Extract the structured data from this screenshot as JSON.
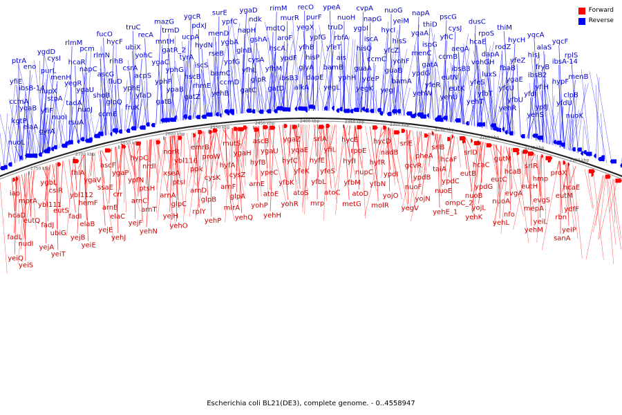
{
  "caption": "Escherichia coli BL21(DE3), complete genome. - 0..4558947",
  "legend": {
    "forward_label": "Forward",
    "reverse_label": "Reverse",
    "forward_color": "#ff0000",
    "reverse_color": "#0000ff"
  },
  "ruler_ticks": [
    "2750 kbp",
    "2700 kbp",
    "2650 kbp",
    "2600 kbp",
    "2550 kbp",
    "2450 kbp",
    "2400 kbp",
    "2350 kbp",
    "2300 kbp",
    "2250 kbp",
    "2200 kbp",
    "2150 kbp",
    "2100 kbp"
  ],
  "reverse_labels": [
    "ptrA",
    "ygdD",
    "rlmM",
    "fucO",
    "truC",
    "mazG",
    "ygcR",
    "surE",
    "ygaD",
    "rimM",
    "recO",
    "ypeA",
    "cvpA",
    "nuoG",
    "napA",
    "pscG",
    "dusC",
    "thiM",
    "yqcA",
    "yqcF",
    "eno",
    "cysI",
    "pcm",
    "hycF",
    "recA",
    "trmD",
    "pdxJ",
    "ypfC",
    "ndk",
    "murR",
    "purF",
    "nuoH",
    "napG",
    "yeiM",
    "thiD",
    "cysJ",
    "rpoS",
    "hycH",
    "alaS",
    "rplS",
    "yfiE",
    "purL",
    "hcaR",
    "rlmN",
    "ubiX",
    "mntH",
    "ucpA",
    "menD",
    "napH",
    "mdtQ",
    "yegX",
    "truD",
    "ygbI",
    "hycI",
    "yqaA",
    "yfiC",
    "hcaE",
    "rodZ",
    "hisJ",
    "ibsA-14",
    "ibsB-14",
    "menH",
    "napC",
    "rihB",
    "yohC",
    "gatR_2",
    "hydN",
    "ygbA",
    "gshA",
    "aroF",
    "ypfG",
    "rbfA",
    "iscA",
    "hisS",
    "ispG",
    "aegA",
    "dapA",
    "yfeZ",
    "fryB",
    "menB",
    "ccmA",
    "nupX",
    "yegR",
    "ascG",
    "csrA",
    "ygaC",
    "tyrA",
    "rseB",
    "glnB",
    "hscA",
    "yfhB",
    "yfeT",
    "hisQ",
    "yfcZ",
    "menC",
    "ccmB",
    "vohGH",
    "fbaB",
    "ibsB2",
    "hypF",
    "yqaB",
    "stpA",
    "ygaU",
    "fluD",
    "acpS",
    "yphG",
    "iscS",
    "ypfG",
    "cysA",
    "ypdF",
    "hisP",
    "ais",
    "ccmC",
    "yohF",
    "gatA",
    "ibsB3",
    "luxS",
    "ygaE",
    "yfiH",
    "clpB",
    "kgtP",
    "yfiF",
    "tadA",
    "shoB",
    "yphE",
    "yphF",
    "hscB",
    "bamC",
    "yfhL",
    "yfhM",
    "glyA",
    "bamB",
    "guaA",
    "guaB",
    "ypdG",
    "eutN",
    "yfeS",
    "yfcU",
    "yfdJ",
    "yfdU",
    "elaA",
    "nuoI",
    "nuoJ",
    "glpQ",
    "yfaD",
    "ypaB",
    "rhmE",
    "ccmD",
    "glpR",
    "ibsB3",
    "dapE",
    "yphH",
    "ydeP",
    "bamA",
    "yfeR",
    "eutK",
    "yfbT",
    "yfbU",
    "ypfJ",
    "nuoK",
    "nuoL",
    "gyrA",
    "rsuA",
    "ccmE",
    "fruK",
    "gatB",
    "gatZ",
    "yehB",
    "gatC",
    "gatD",
    "alkA",
    "yegL",
    "yegK",
    "yegI",
    "yehW",
    "yehU",
    "yehT",
    "yehR",
    "yehS"
  ],
  "forward_labels": [
    "iap",
    "ygbL",
    "fhlA",
    "ascF",
    "hypC",
    "norR",
    "emrB",
    "mutS",
    "ascB",
    "ygaZ",
    "srlA",
    "hycE",
    "hycD",
    "srlE",
    "srlB",
    "srlD",
    "gutM",
    "srlR",
    "proX",
    "mprA",
    "csiR",
    "ygaV",
    "ygaP",
    "nrdI",
    "ybl116",
    "proW",
    "ygaH",
    "ygaU",
    "yqaE",
    "yfiL",
    "rpoE",
    "nadB",
    "pheA",
    "hcaF",
    "hcaC",
    "hcaB",
    "hmp",
    "hcaE",
    "hcaD",
    "ybl111",
    "ybl112",
    "ssaE",
    "ypfN",
    "xseA",
    "ppk",
    "hyfA",
    "hyfB",
    "hyfC",
    "hyfE",
    "hyfI",
    "hyfR",
    "gcvR",
    "taiA",
    "eutB",
    "eutC",
    "eutH",
    "eutM",
    "eutQ",
    "eutS",
    "hemF",
    "crr",
    "ptsH",
    "ptsI",
    "cysK",
    "cysZ",
    "ypeC",
    "yfeK",
    "yfeS",
    "nupC",
    "ypdI",
    "ypdB",
    "ypdC",
    "ypdG",
    "evgA",
    "evgS",
    "ydfF",
    "fadL",
    "fadJ",
    "fadI",
    "arnB",
    "arnC",
    "arnA",
    "arnD",
    "arnF",
    "arnE",
    "yfbK",
    "yfbL",
    "yfbM",
    "yfbN",
    "nuoF",
    "nuoE",
    "nuoB",
    "nuoA",
    "mepA",
    "rbn",
    "nudI",
    "ubiG",
    "elaB",
    "elaC",
    "arnT",
    "glpC",
    "glpB",
    "glpA",
    "atoE",
    "atoS",
    "atoC",
    "atoD",
    "yojO",
    "yojN",
    "ompC_2",
    "yojL",
    "nfo",
    "yeiL",
    "yeiP",
    "yeiQ",
    "yejA",
    "yejB",
    "yejE",
    "yejF",
    "yejH",
    "rplY",
    "mlrA",
    "yohP",
    "yohR",
    "mrp",
    "metG",
    "molR",
    "yegV",
    "yehE_1",
    "yehK",
    "yehL",
    "yehM",
    "sanA",
    "yeiS",
    "yeiT",
    "yeiE",
    "yehJ",
    "yehN",
    "yehO",
    "yehP",
    "yehQ",
    "yehH"
  ]
}
